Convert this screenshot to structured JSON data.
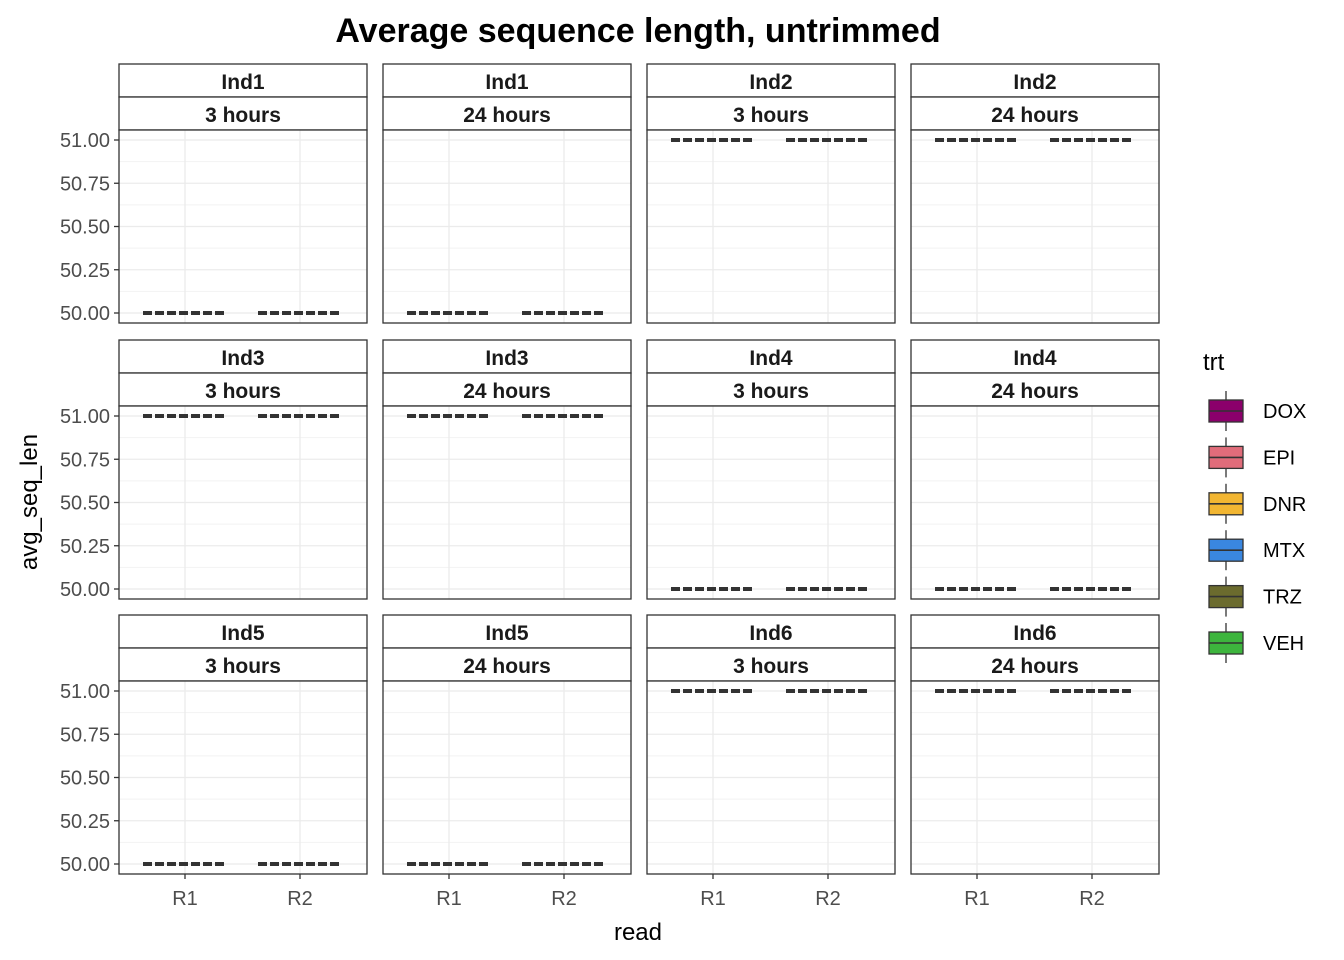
{
  "chart_data": {
    "type": "box",
    "title": "Average sequence length, untrimmed",
    "xlabel": "read",
    "ylabel": "avg_seq_len",
    "ylim": [
      50.0,
      51.0
    ],
    "y_ticks": [
      "50.00",
      "50.25",
      "50.50",
      "50.75",
      "51.00"
    ],
    "y_tick_values": [
      50.0,
      50.25,
      50.5,
      50.75,
      51.0
    ],
    "categories": [
      "R1",
      "R2"
    ],
    "grid": true,
    "legend": {
      "title": "trt",
      "position": "right",
      "entries": [
        {
          "name": "DOX",
          "color": "#8B006B"
        },
        {
          "name": "EPI",
          "color": "#E06C7A"
        },
        {
          "name": "DNR",
          "color": "#F2B632"
        },
        {
          "name": "MTX",
          "color": "#3A87E0"
        },
        {
          "name": "TRZ",
          "color": "#6B6B2E"
        },
        {
          "name": "VEH",
          "color": "#3DB53D"
        }
      ]
    },
    "panels": [
      {
        "ind": "Ind1",
        "time": "3 hours",
        "values": {
          "R1": 50,
          "R2": 50
        }
      },
      {
        "ind": "Ind1",
        "time": "24 hours",
        "values": {
          "R1": 50,
          "R2": 50
        }
      },
      {
        "ind": "Ind2",
        "time": "3 hours",
        "values": {
          "R1": 51,
          "R2": 51
        }
      },
      {
        "ind": "Ind2",
        "time": "24 hours",
        "values": {
          "R1": 51,
          "R2": 51
        }
      },
      {
        "ind": "Ind3",
        "time": "3 hours",
        "values": {
          "R1": 51,
          "R2": 51
        }
      },
      {
        "ind": "Ind3",
        "time": "24 hours",
        "values": {
          "R1": 51,
          "R2": 51
        }
      },
      {
        "ind": "Ind4",
        "time": "3 hours",
        "values": {
          "R1": 50,
          "R2": 50
        }
      },
      {
        "ind": "Ind4",
        "time": "24 hours",
        "values": {
          "R1": 50,
          "R2": 50
        }
      },
      {
        "ind": "Ind5",
        "time": "3 hours",
        "values": {
          "R1": 50,
          "R2": 50
        }
      },
      {
        "ind": "Ind5",
        "time": "24 hours",
        "values": {
          "R1": 50,
          "R2": 50
        }
      },
      {
        "ind": "Ind6",
        "time": "3 hours",
        "values": {
          "R1": 51,
          "R2": 51
        }
      },
      {
        "ind": "Ind6",
        "time": "24 hours",
        "values": {
          "R1": 51,
          "R2": 51
        }
      }
    ]
  }
}
